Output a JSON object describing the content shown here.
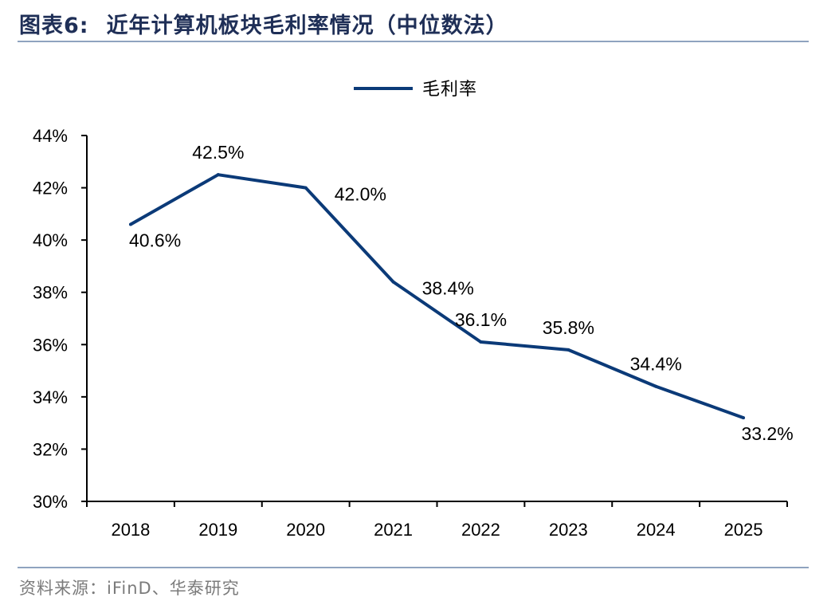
{
  "header": {
    "figure_label": "图表6:",
    "title": "近年计算机板块毛利率情况（中位数法）"
  },
  "footer": {
    "source": "资料来源：iFinD、华泰研究"
  },
  "colors": {
    "series_line": "#0b3a78",
    "axis": "#000000",
    "rule": "#8fa3bf"
  },
  "chart_data": {
    "type": "line",
    "title": "近年计算机板块毛利率情况（中位数法）",
    "x": [
      "2018",
      "2019",
      "2020",
      "2021",
      "2022",
      "2023",
      "2024",
      "2025"
    ],
    "series": [
      {
        "name": "毛利率",
        "values": [
          40.6,
          42.5,
          42.0,
          38.4,
          36.1,
          35.8,
          34.4,
          33.2
        ],
        "labels": [
          "40.6%",
          "42.5%",
          "42.0%",
          "38.4%",
          "36.1%",
          "35.8%",
          "34.4%",
          "33.2%"
        ]
      }
    ],
    "ylim": [
      30,
      44
    ],
    "yticks": [
      30,
      32,
      34,
      36,
      38,
      40,
      42,
      44
    ],
    "ytick_labels": [
      "30%",
      "32%",
      "34%",
      "36%",
      "38%",
      "40%",
      "42%",
      "44%"
    ],
    "legend_position": "top-center",
    "grid": false
  }
}
